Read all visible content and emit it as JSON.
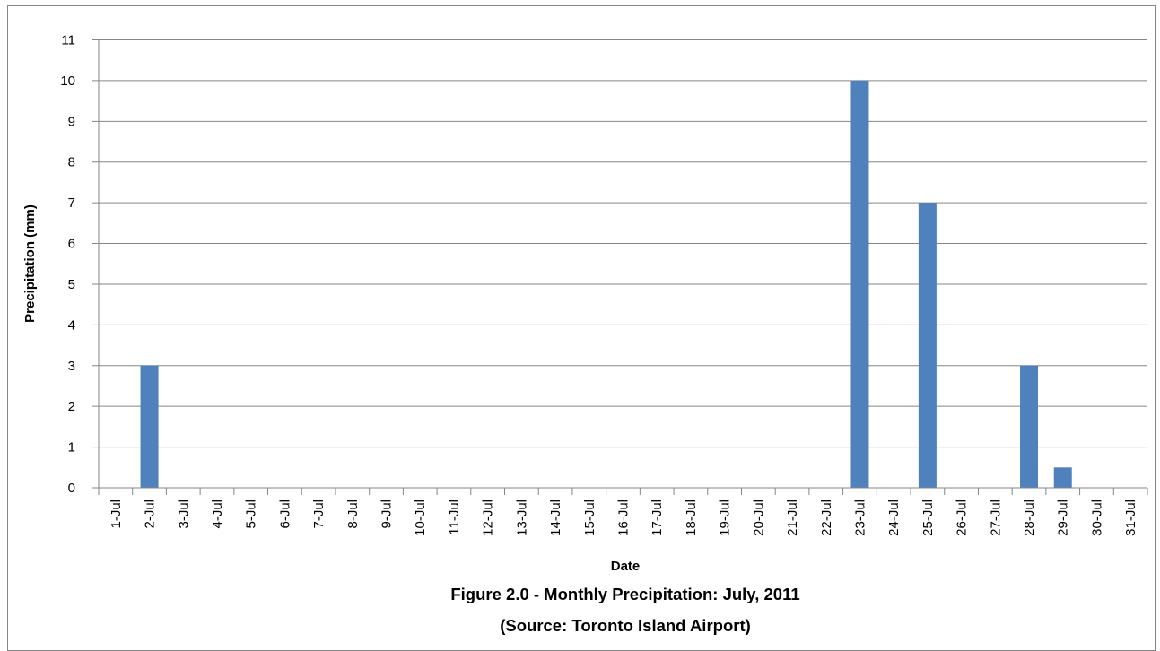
{
  "chart_data": {
    "type": "bar",
    "title": "Figure 2.0 - Monthly Precipitation: July, 2011",
    "subtitle": "(Source: Toronto Island Airport)",
    "xlabel": "Date",
    "ylabel": "Precipitation (mm)",
    "ylim": [
      0,
      11
    ],
    "yticks": [
      0,
      1,
      2,
      3,
      4,
      5,
      6,
      7,
      8,
      9,
      10,
      11
    ],
    "grid": true,
    "legend": "none",
    "bar_color": "#4f81bd",
    "categories": [
      "1-Jul",
      "2-Jul",
      "3-Jul",
      "4-Jul",
      "5-Jul",
      "6-Jul",
      "7-Jul",
      "8-Jul",
      "9-Jul",
      "10-Jul",
      "11-Jul",
      "12-Jul",
      "13-Jul",
      "14-Jul",
      "15-Jul",
      "16-Jul",
      "17-Jul",
      "18-Jul",
      "19-Jul",
      "20-Jul",
      "21-Jul",
      "22-Jul",
      "23-Jul",
      "24-Jul",
      "25-Jul",
      "26-Jul",
      "27-Jul",
      "28-Jul",
      "29-Jul",
      "30-Jul",
      "31-Jul"
    ],
    "values": [
      0,
      3,
      0,
      0,
      0,
      0,
      0,
      0,
      0,
      0,
      0,
      0,
      0,
      0,
      0,
      0,
      0,
      0,
      0,
      0,
      0,
      0,
      10,
      0,
      7,
      0,
      0,
      3,
      0.5,
      0,
      0
    ]
  }
}
